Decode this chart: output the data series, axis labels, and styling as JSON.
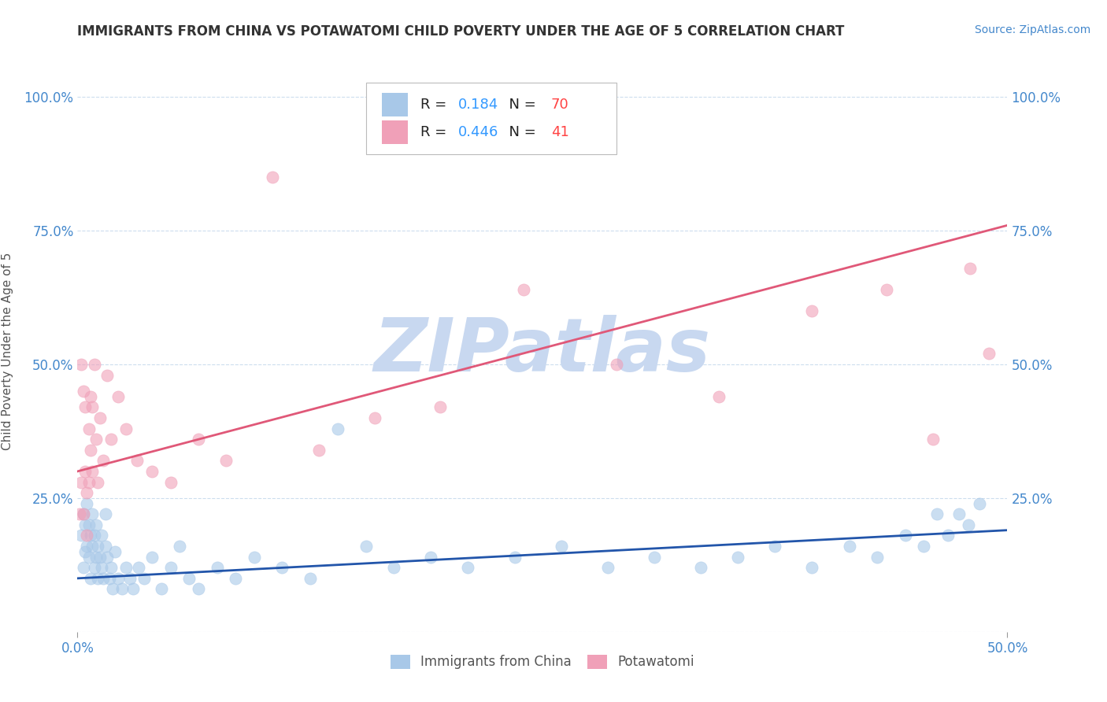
{
  "title": "IMMIGRANTS FROM CHINA VS POTAWATOMI CHILD POVERTY UNDER THE AGE OF 5 CORRELATION CHART",
  "source_text": "Source: ZipAtlas.com",
  "ylabel_text": "Child Poverty Under the Age of 5",
  "legend_china": "Immigrants from China",
  "legend_potawatomi": "Potawatomi",
  "r_china": "0.184",
  "n_china": "70",
  "r_potawatomi": "0.446",
  "n_potawatomi": "41",
  "color_china": "#A8C8E8",
  "color_potawatomi": "#F0A0B8",
  "color_china_line": "#2255AA",
  "color_potawatomi_line": "#E05878",
  "color_r_value": "#3399FF",
  "color_n_value": "#FF4444",
  "background_color": "#FFFFFF",
  "watermark_text": "ZIPatlas",
  "watermark_color": "#C8D8F0",
  "xlim": [
    0.0,
    0.5
  ],
  "ylim": [
    0.0,
    1.05
  ],
  "ytick_values": [
    0.0,
    0.25,
    0.5,
    0.75,
    1.0
  ],
  "ytick_labels": [
    "",
    "25.0%",
    "50.0%",
    "75.0%",
    "100.0%"
  ],
  "china_scatter_x": [
    0.002,
    0.003,
    0.003,
    0.004,
    0.004,
    0.005,
    0.005,
    0.006,
    0.006,
    0.007,
    0.007,
    0.008,
    0.008,
    0.009,
    0.009,
    0.01,
    0.01,
    0.011,
    0.011,
    0.012,
    0.013,
    0.013,
    0.014,
    0.015,
    0.015,
    0.016,
    0.017,
    0.018,
    0.019,
    0.02,
    0.022,
    0.024,
    0.026,
    0.028,
    0.03,
    0.033,
    0.036,
    0.04,
    0.045,
    0.05,
    0.055,
    0.06,
    0.065,
    0.075,
    0.085,
    0.095,
    0.11,
    0.125,
    0.14,
    0.155,
    0.17,
    0.19,
    0.21,
    0.235,
    0.26,
    0.285,
    0.31,
    0.335,
    0.355,
    0.375,
    0.395,
    0.415,
    0.43,
    0.445,
    0.455,
    0.462,
    0.468,
    0.474,
    0.479,
    0.485
  ],
  "china_scatter_y": [
    0.18,
    0.22,
    0.12,
    0.15,
    0.2,
    0.16,
    0.24,
    0.14,
    0.2,
    0.18,
    0.1,
    0.16,
    0.22,
    0.12,
    0.18,
    0.14,
    0.2,
    0.1,
    0.16,
    0.14,
    0.12,
    0.18,
    0.1,
    0.16,
    0.22,
    0.14,
    0.1,
    0.12,
    0.08,
    0.15,
    0.1,
    0.08,
    0.12,
    0.1,
    0.08,
    0.12,
    0.1,
    0.14,
    0.08,
    0.12,
    0.16,
    0.1,
    0.08,
    0.12,
    0.1,
    0.14,
    0.12,
    0.1,
    0.38,
    0.16,
    0.12,
    0.14,
    0.12,
    0.14,
    0.16,
    0.12,
    0.14,
    0.12,
    0.14,
    0.16,
    0.12,
    0.16,
    0.14,
    0.18,
    0.16,
    0.22,
    0.18,
    0.22,
    0.2,
    0.24
  ],
  "potawatomi_scatter_x": [
    0.001,
    0.002,
    0.002,
    0.003,
    0.003,
    0.004,
    0.004,
    0.005,
    0.005,
    0.006,
    0.006,
    0.007,
    0.007,
    0.008,
    0.008,
    0.009,
    0.01,
    0.011,
    0.012,
    0.014,
    0.016,
    0.018,
    0.022,
    0.026,
    0.032,
    0.04,
    0.05,
    0.065,
    0.08,
    0.105,
    0.13,
    0.16,
    0.195,
    0.24,
    0.29,
    0.345,
    0.395,
    0.435,
    0.46,
    0.48,
    0.49
  ],
  "potawatomi_scatter_y": [
    0.22,
    0.28,
    0.5,
    0.45,
    0.22,
    0.42,
    0.3,
    0.18,
    0.26,
    0.38,
    0.28,
    0.44,
    0.34,
    0.3,
    0.42,
    0.5,
    0.36,
    0.28,
    0.4,
    0.32,
    0.48,
    0.36,
    0.44,
    0.38,
    0.32,
    0.3,
    0.28,
    0.36,
    0.32,
    0.85,
    0.34,
    0.4,
    0.42,
    0.64,
    0.5,
    0.44,
    0.6,
    0.64,
    0.36,
    0.68,
    0.52
  ],
  "china_trend_x": [
    0.0,
    0.5
  ],
  "china_trend_y": [
    0.1,
    0.19
  ],
  "potawatomi_trend_x": [
    0.0,
    0.5
  ],
  "potawatomi_trend_y": [
    0.3,
    0.76
  ]
}
